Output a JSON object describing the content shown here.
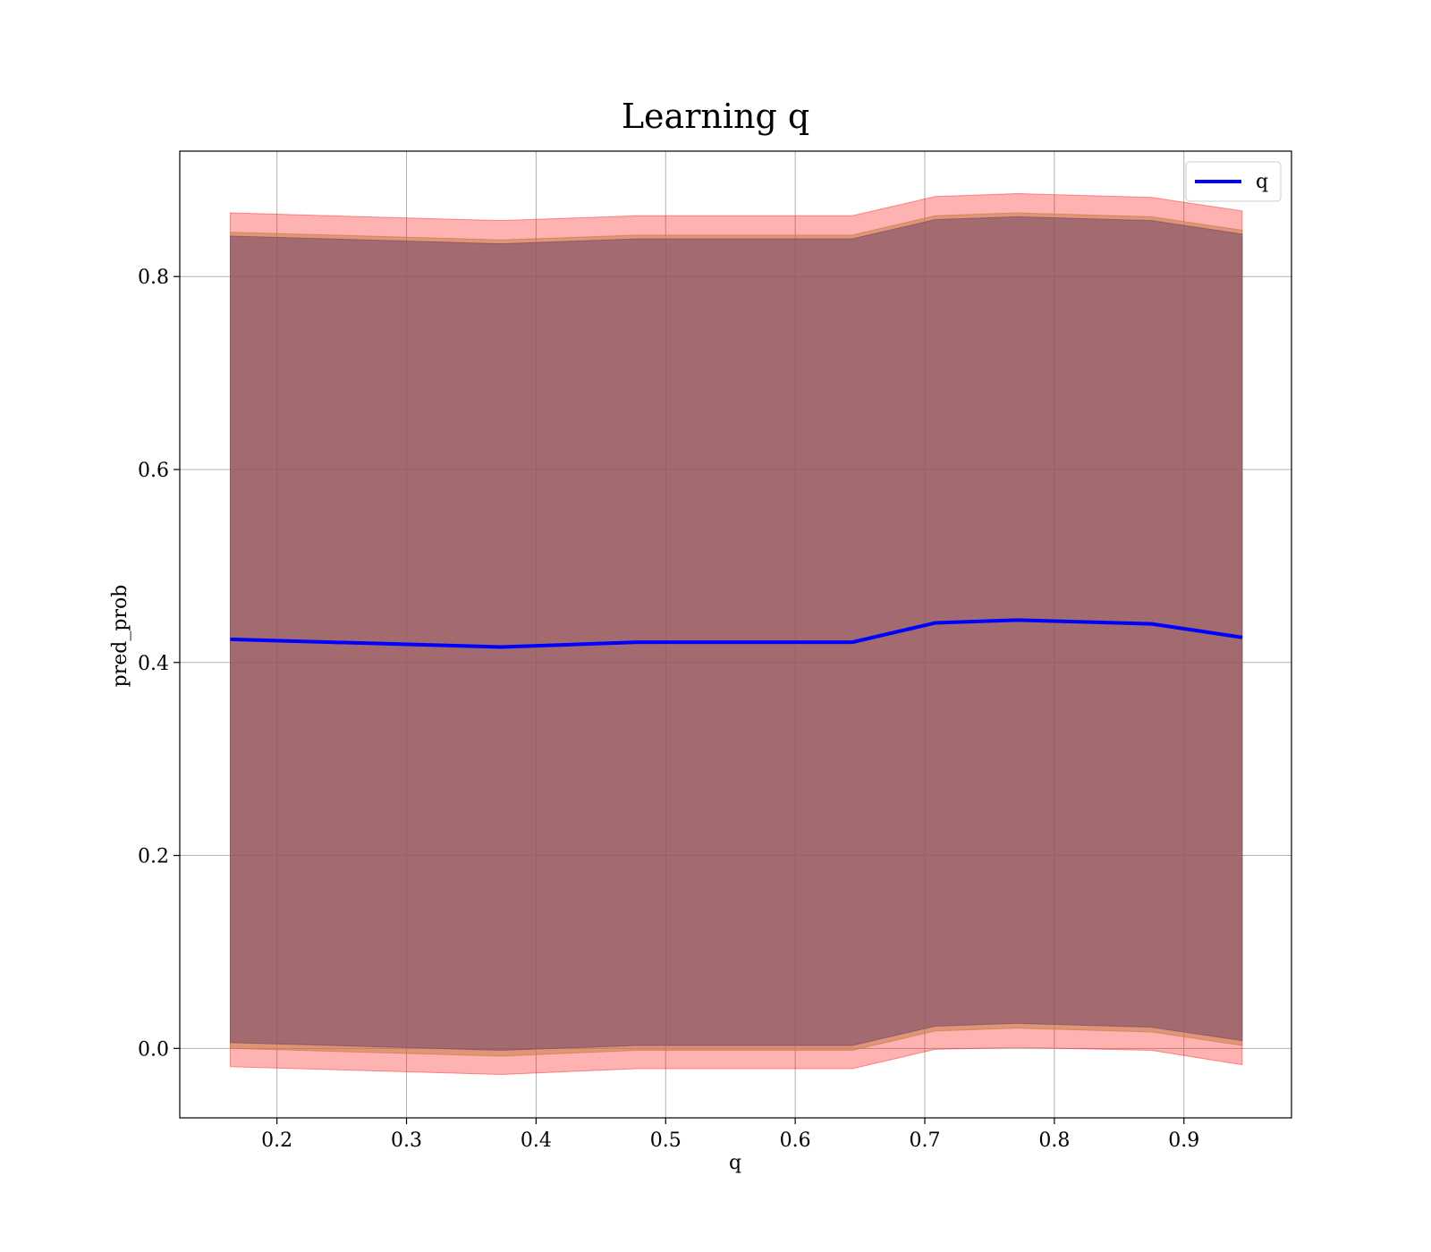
{
  "chart_data": {
    "type": "area",
    "title": "Learning q",
    "xlabel": "q",
    "ylabel": "pred_prob",
    "xlim": [
      0.125,
      0.983
    ],
    "ylim": [
      -0.072,
      0.93
    ],
    "xticks": [
      0.2,
      0.3,
      0.4,
      0.5,
      0.6,
      0.7,
      0.8,
      0.9
    ],
    "xtick_labels": [
      "0.2",
      "0.3",
      "0.4",
      "0.5",
      "0.6",
      "0.7",
      "0.8",
      "0.9"
    ],
    "yticks": [
      0.0,
      0.2,
      0.4,
      0.6,
      0.8
    ],
    "ytick_labels": [
      "0.0",
      "0.2",
      "0.4",
      "0.6",
      "0.8"
    ],
    "grid": true,
    "legend_position": "top-right",
    "x": [
      0.164,
      0.373,
      0.478,
      0.644,
      0.708,
      0.771,
      0.875,
      0.945
    ],
    "series": [
      {
        "name": "q",
        "values": [
          0.424,
          0.416,
          0.421,
          0.421,
          0.441,
          0.444,
          0.44,
          0.426
        ],
        "color": "#0000ff"
      }
    ],
    "bands": [
      {
        "lower": [
          -0.019,
          -0.027,
          -0.021,
          -0.021,
          -0.001,
          0.001,
          -0.002,
          -0.017
        ],
        "upper": [
          0.866,
          0.858,
          0.863,
          0.863,
          0.883,
          0.886,
          0.882,
          0.868
        ],
        "color": "#ff0000",
        "opacity": 0.3
      },
      {
        "lower": [
          0.0,
          -0.008,
          -0.002,
          -0.002,
          0.018,
          0.021,
          0.017,
          0.003
        ],
        "upper": [
          0.846,
          0.838,
          0.843,
          0.843,
          0.863,
          0.866,
          0.862,
          0.848
        ],
        "color": "#c87d45",
        "opacity": 0.55
      },
      {
        "lower": [
          0.006,
          -0.002,
          0.003,
          0.003,
          0.023,
          0.026,
          0.022,
          0.008
        ],
        "upper": [
          0.842,
          0.834,
          0.839,
          0.839,
          0.859,
          0.862,
          0.858,
          0.844
        ],
        "color": "#7a4e6c",
        "opacity": 0.6
      }
    ]
  }
}
